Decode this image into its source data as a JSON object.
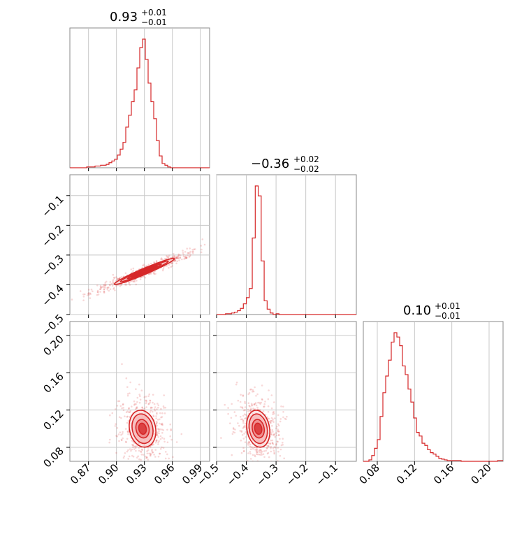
{
  "chart_data": {
    "type": "corner",
    "color": "#d62728",
    "parameters": [
      {
        "title_value": "0.93",
        "title_plus": "+0.01",
        "title_minus": "−0.01",
        "range": [
          0.85,
          1.0
        ],
        "ticks": [
          0.87,
          0.9,
          0.93,
          0.96,
          0.99
        ],
        "tick_labels": [
          "0.87",
          "0.90",
          "0.93",
          "0.96",
          "0.99"
        ]
      },
      {
        "title_value": "−0.36",
        "title_plus": "+0.02",
        "title_minus": "−0.02",
        "range": [
          -0.5,
          -0.03
        ],
        "ticks": [
          -0.5,
          -0.4,
          -0.3,
          -0.2,
          -0.1
        ],
        "tick_labels": [
          "−0.5",
          "−0.4",
          "−0.3",
          "−0.2",
          "−0.1"
        ]
      },
      {
        "title_value": "0.10",
        "title_plus": "+0.01",
        "title_minus": "−0.01",
        "range": [
          0.065,
          0.215
        ],
        "ticks": [
          0.08,
          0.12,
          0.16,
          0.2
        ],
        "tick_labels": [
          "0.08",
          "0.12",
          "0.16",
          "0.20"
        ]
      }
    ],
    "histograms": [
      {
        "param": 0,
        "bins": [
          [
            0.85,
            0.853,
            0
          ],
          [
            0.853,
            0.856,
            0
          ],
          [
            0.856,
            0.859,
            0
          ],
          [
            0.859,
            0.862,
            0
          ],
          [
            0.862,
            0.865,
            0
          ],
          [
            0.865,
            0.868,
            0
          ],
          [
            0.868,
            0.871,
            1
          ],
          [
            0.871,
            0.874,
            1
          ],
          [
            0.874,
            0.877,
            1
          ],
          [
            0.877,
            0.88,
            2
          ],
          [
            0.88,
            0.883,
            2
          ],
          [
            0.883,
            0.886,
            3
          ],
          [
            0.886,
            0.889,
            3
          ],
          [
            0.889,
            0.892,
            4
          ],
          [
            0.892,
            0.895,
            6
          ],
          [
            0.895,
            0.898,
            8
          ],
          [
            0.898,
            0.901,
            10
          ],
          [
            0.901,
            0.904,
            15
          ],
          [
            0.904,
            0.907,
            22
          ],
          [
            0.907,
            0.91,
            30
          ],
          [
            0.91,
            0.913,
            48
          ],
          [
            0.913,
            0.916,
            62
          ],
          [
            0.916,
            0.919,
            78
          ],
          [
            0.919,
            0.922,
            92
          ],
          [
            0.922,
            0.925,
            118
          ],
          [
            0.925,
            0.928,
            142
          ],
          [
            0.928,
            0.931,
            152
          ],
          [
            0.931,
            0.934,
            128
          ],
          [
            0.934,
            0.937,
            100
          ],
          [
            0.937,
            0.94,
            78
          ],
          [
            0.94,
            0.943,
            58
          ],
          [
            0.943,
            0.946,
            32
          ],
          [
            0.946,
            0.949,
            14
          ],
          [
            0.949,
            0.952,
            5
          ],
          [
            0.952,
            0.955,
            3
          ],
          [
            0.955,
            0.958,
            1
          ],
          [
            0.958,
            0.961,
            0
          ],
          [
            0.961,
            0.964,
            0
          ],
          [
            0.964,
            0.967,
            0
          ],
          [
            0.967,
            0.97,
            0
          ],
          [
            0.97,
            0.973,
            0
          ],
          [
            0.973,
            0.976,
            0
          ],
          [
            0.976,
            0.979,
            0
          ],
          [
            0.979,
            0.982,
            0
          ],
          [
            0.982,
            0.985,
            0
          ],
          [
            0.985,
            0.988,
            0
          ],
          [
            0.988,
            0.991,
            0
          ],
          [
            0.991,
            0.994,
            0
          ],
          [
            0.994,
            0.997,
            0
          ],
          [
            0.997,
            1.0,
            0
          ]
        ]
      },
      {
        "param": 1,
        "bins": [
          [
            -0.5,
            -0.49,
            0
          ],
          [
            -0.49,
            -0.48,
            0
          ],
          [
            -0.48,
            -0.47,
            0
          ],
          [
            -0.47,
            -0.46,
            1
          ],
          [
            -0.46,
            -0.45,
            1
          ],
          [
            -0.45,
            -0.44,
            2
          ],
          [
            -0.44,
            -0.43,
            3
          ],
          [
            -0.43,
            -0.42,
            5
          ],
          [
            -0.42,
            -0.41,
            8
          ],
          [
            -0.41,
            -0.4,
            14
          ],
          [
            -0.4,
            -0.39,
            22
          ],
          [
            -0.39,
            -0.38,
            34
          ],
          [
            -0.38,
            -0.37,
            100
          ],
          [
            -0.37,
            -0.36,
            168
          ],
          [
            -0.36,
            -0.35,
            155
          ],
          [
            -0.35,
            -0.34,
            70
          ],
          [
            -0.34,
            -0.33,
            18
          ],
          [
            -0.33,
            -0.32,
            7
          ],
          [
            -0.32,
            -0.31,
            2
          ],
          [
            -0.31,
            -0.3,
            0
          ],
          [
            -0.3,
            -0.29,
            1
          ],
          [
            -0.29,
            -0.28,
            0
          ],
          [
            -0.28,
            -0.27,
            0
          ],
          [
            -0.27,
            -0.26,
            0
          ],
          [
            -0.26,
            -0.25,
            0
          ],
          [
            -0.25,
            -0.24,
            0
          ],
          [
            -0.24,
            -0.23,
            0
          ],
          [
            -0.23,
            -0.22,
            0
          ],
          [
            -0.22,
            -0.21,
            0
          ],
          [
            -0.21,
            -0.2,
            0
          ],
          [
            -0.2,
            -0.19,
            0
          ],
          [
            -0.19,
            -0.18,
            0
          ],
          [
            -0.18,
            -0.17,
            0
          ],
          [
            -0.17,
            -0.16,
            0
          ],
          [
            -0.16,
            -0.15,
            0
          ],
          [
            -0.15,
            -0.14,
            0
          ],
          [
            -0.14,
            -0.13,
            0
          ],
          [
            -0.13,
            -0.12,
            0
          ],
          [
            -0.12,
            -0.11,
            0
          ],
          [
            -0.11,
            -0.1,
            0
          ],
          [
            -0.1,
            -0.09,
            0
          ],
          [
            -0.09,
            -0.08,
            0
          ],
          [
            -0.08,
            -0.07,
            0
          ],
          [
            -0.07,
            -0.06,
            0
          ],
          [
            -0.06,
            -0.05,
            0
          ],
          [
            -0.05,
            -0.04,
            0
          ],
          [
            -0.04,
            -0.03,
            0
          ]
        ]
      },
      {
        "param": 2,
        "bins": [
          [
            0.065,
            0.068,
            0
          ],
          [
            0.068,
            0.071,
            0
          ],
          [
            0.071,
            0.074,
            2
          ],
          [
            0.074,
            0.077,
            8
          ],
          [
            0.077,
            0.08,
            18
          ],
          [
            0.08,
            0.083,
            30
          ],
          [
            0.083,
            0.086,
            62
          ],
          [
            0.086,
            0.089,
            95
          ],
          [
            0.089,
            0.092,
            118
          ],
          [
            0.092,
            0.095,
            140
          ],
          [
            0.095,
            0.098,
            165
          ],
          [
            0.098,
            0.101,
            178
          ],
          [
            0.101,
            0.104,
            172
          ],
          [
            0.104,
            0.107,
            160
          ],
          [
            0.107,
            0.11,
            132
          ],
          [
            0.11,
            0.113,
            120
          ],
          [
            0.113,
            0.116,
            100
          ],
          [
            0.116,
            0.119,
            82
          ],
          [
            0.119,
            0.122,
            60
          ],
          [
            0.122,
            0.125,
            40
          ],
          [
            0.125,
            0.128,
            35
          ],
          [
            0.128,
            0.131,
            25
          ],
          [
            0.131,
            0.134,
            22
          ],
          [
            0.134,
            0.137,
            16
          ],
          [
            0.137,
            0.14,
            12
          ],
          [
            0.14,
            0.143,
            10
          ],
          [
            0.143,
            0.146,
            7
          ],
          [
            0.146,
            0.149,
            4
          ],
          [
            0.149,
            0.152,
            3
          ],
          [
            0.152,
            0.155,
            2
          ],
          [
            0.155,
            0.158,
            1
          ],
          [
            0.158,
            0.161,
            1
          ],
          [
            0.161,
            0.164,
            1
          ],
          [
            0.164,
            0.167,
            1
          ],
          [
            0.167,
            0.17,
            1
          ],
          [
            0.17,
            0.173,
            0
          ],
          [
            0.173,
            0.176,
            0
          ],
          [
            0.176,
            0.179,
            0
          ],
          [
            0.179,
            0.182,
            0
          ],
          [
            0.182,
            0.185,
            0
          ],
          [
            0.185,
            0.188,
            0
          ],
          [
            0.188,
            0.191,
            0
          ],
          [
            0.191,
            0.194,
            0
          ],
          [
            0.194,
            0.197,
            0
          ],
          [
            0.197,
            0.2,
            0
          ],
          [
            0.2,
            0.203,
            0
          ],
          [
            0.203,
            0.206,
            0
          ],
          [
            0.206,
            0.209,
            0
          ],
          [
            0.209,
            0.212,
            1
          ],
          [
            0.212,
            0.215,
            1
          ]
        ]
      }
    ],
    "joint": [
      {
        "x_param": 0,
        "y_param": 1,
        "center": [
          0.93,
          -0.355
        ],
        "cloud_radius": [
          [
            0.015,
            0.002
          ],
          [
            0.02,
            0.004
          ],
          [
            0.028,
            0.007
          ],
          [
            0.035,
            0.01
          ]
        ],
        "angle_deg": -23
      },
      {
        "x_param": 0,
        "y_param": 2,
        "center": [
          0.928,
          0.1
        ],
        "cloud_radius": [
          [
            0.004,
            0.006
          ],
          [
            0.007,
            0.01
          ],
          [
            0.011,
            0.016
          ],
          [
            0.014,
            0.02
          ]
        ],
        "angle_deg": -12
      },
      {
        "x_param": 1,
        "y_param": 2,
        "center": [
          -0.36,
          0.1
        ],
        "cloud_radius": [
          [
            0.012,
            0.006
          ],
          [
            0.02,
            0.01
          ],
          [
            0.03,
            0.016
          ],
          [
            0.038,
            0.02
          ]
        ],
        "angle_deg": -10
      }
    ]
  }
}
